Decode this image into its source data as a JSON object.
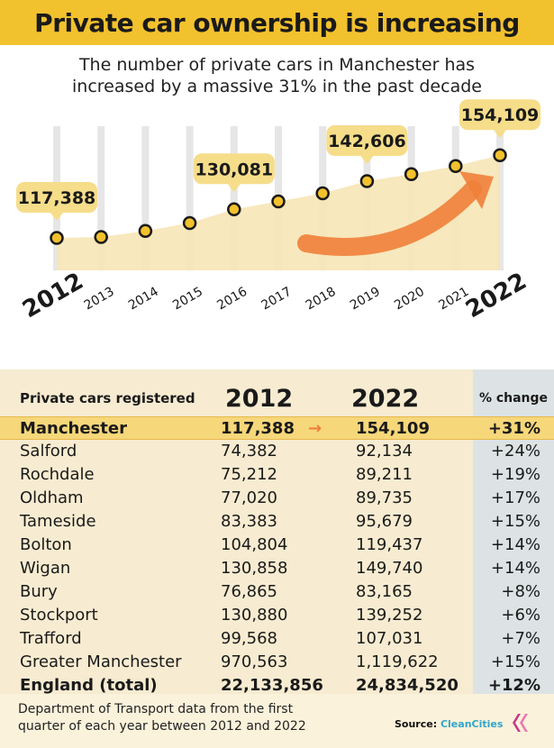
{
  "header": {
    "title": "Private car ownership is increasing",
    "subtitle_line1": "The number of private cars in Manchester  has",
    "subtitle_line2": "increased by a massive 31% in the past decade"
  },
  "colors": {
    "title_bg": "#f2c12e",
    "area_fill": "#f6e6b6",
    "dot_fill": "#f2c12e",
    "callout_bg": "#f6dd8a",
    "arrow": "#ef7f3a",
    "table_bg": "#f7ecd1",
    "change_col_bg": "#dde3e4",
    "highlight_row": "#f6d77a",
    "brand": "#2fa6c9"
  },
  "chart_data": {
    "type": "area",
    "x": [
      "2012",
      "2013",
      "2014",
      "2015",
      "2016",
      "2017",
      "2018",
      "2019",
      "2020",
      "2021",
      "2022"
    ],
    "values": [
      117388,
      117800,
      120500,
      124000,
      130081,
      133600,
      137200,
      142606,
      145700,
      149300,
      154109
    ],
    "callouts": [
      {
        "year": "2012",
        "label": "117,388"
      },
      {
        "year": "2016",
        "label": "130,081"
      },
      {
        "year": "2019",
        "label": "142,606"
      },
      {
        "year": "2022",
        "label": "154,109"
      }
    ],
    "highlight_years": [
      "2012",
      "2022"
    ],
    "grid": true,
    "ylim": [
      100000,
      165000
    ]
  },
  "table": {
    "header_label": "Private cars registered",
    "year1": "2012",
    "year2": "2022",
    "change_label": "% change",
    "arrow": "→",
    "rows": [
      {
        "area": "Manchester",
        "v2012": "117,388",
        "v2022": "154,109",
        "change": "+31%"
      },
      {
        "area": "Salford",
        "v2012": "74,382",
        "v2022": "92,134",
        "change": "+24%"
      },
      {
        "area": "Rochdale",
        "v2012": "75,212",
        "v2022": "89,211",
        "change": "+19%"
      },
      {
        "area": "Oldham",
        "v2012": "77,020",
        "v2022": "89,735",
        "change": "+17%"
      },
      {
        "area": "Tameside",
        "v2012": "83,383",
        "v2022": "95,679",
        "change": "+15%"
      },
      {
        "area": "Bolton",
        "v2012": "104,804",
        "v2022": "119,437",
        "change": "+14%"
      },
      {
        "area": "Wigan",
        "v2012": "130,858",
        "v2022": "149,740",
        "change": "+14%"
      },
      {
        "area": "Bury",
        "v2012": "76,865",
        "v2022": "83,165",
        "change": "+8%"
      },
      {
        "area": "Stockport",
        "v2012": "130,880",
        "v2022": "139,252",
        "change": "+6%"
      },
      {
        "area": "Trafford",
        "v2012": "99,568",
        "v2022": "107,031",
        "change": "+7%"
      },
      {
        "area": "Greater Manchester",
        "v2012": "970,563",
        "v2022": "1,119,622",
        "change": "+15%"
      },
      {
        "area": "England (total)",
        "v2012": "22,133,856",
        "v2022": "24,834,520",
        "change": "+12%"
      }
    ]
  },
  "footer": {
    "note_line1": "Department of Transport data from the first",
    "note_line2": "quarter of each year between 2012 and 2022",
    "source_label": "Source:",
    "source_brand": "CleanCities",
    "logo_icon": "cleancities-logo-icon"
  }
}
